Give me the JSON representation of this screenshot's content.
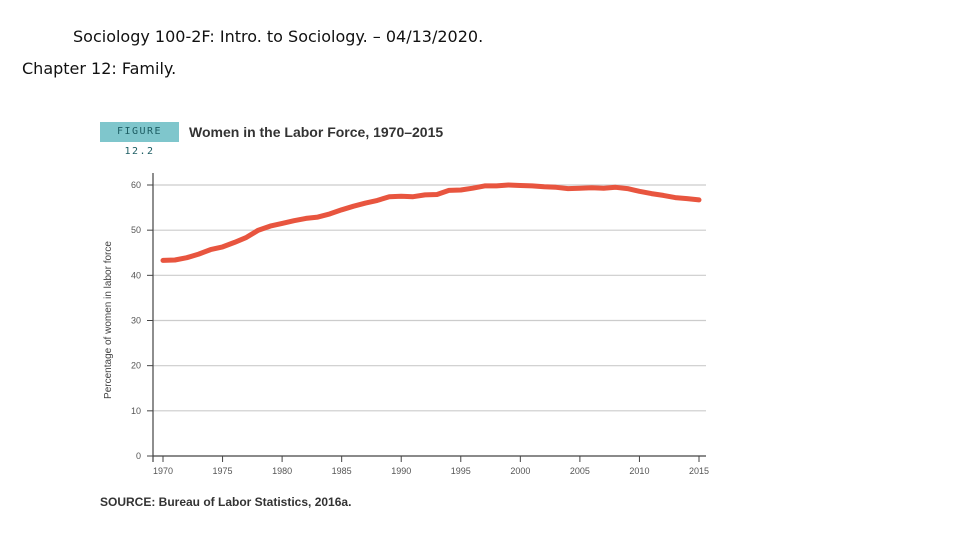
{
  "slide": {
    "title": "Sociology 100-2F: Intro. to Sociology. – 04/13/2020.",
    "subtitle": "Chapter 12: Family."
  },
  "figure": {
    "tag": "FIGURE 12.2",
    "title": "Women in the Labor Force, 1970–2015",
    "source": "SOURCE: Bureau of Labor Statistics, 2016a."
  },
  "colors": {
    "line": "#e8553f",
    "tag_background": "#7fc6cc",
    "grid": "#cccccc",
    "axis": "#444444"
  },
  "chart_data": {
    "type": "line",
    "title": "Women in the Labor Force, 1970–2015",
    "xlabel": "",
    "ylabel": "Percentage of women in labor force",
    "xlim": [
      1970,
      2015
    ],
    "ylim": [
      0,
      60
    ],
    "x_ticks": [
      1970,
      1975,
      1980,
      1985,
      1990,
      1995,
      2000,
      2005,
      2010,
      2015
    ],
    "y_ticks": [
      0,
      10,
      20,
      30,
      40,
      50,
      60
    ],
    "grid": true,
    "series": [
      {
        "x": [
          1970,
          1971,
          1972,
          1973,
          1974,
          1975,
          1976,
          1977,
          1978,
          1979,
          1980,
          1981,
          1982,
          1983,
          1984,
          1985,
          1986,
          1987,
          1988,
          1989,
          1990,
          1991,
          1992,
          1993,
          1994,
          1995,
          1996,
          1997,
          1998,
          1999,
          2000,
          2001,
          2002,
          2003,
          2004,
          2005,
          2006,
          2007,
          2008,
          2009,
          2010,
          2011,
          2012,
          2013,
          2014,
          2015
        ],
        "values": [
          43.3,
          43.4,
          43.9,
          44.7,
          45.7,
          46.3,
          47.3,
          48.4,
          50.0,
          50.9,
          51.5,
          52.1,
          52.6,
          52.9,
          53.6,
          54.5,
          55.3,
          56.0,
          56.6,
          57.4,
          57.5,
          57.4,
          57.8,
          57.9,
          58.8,
          58.9,
          59.3,
          59.8,
          59.8,
          60.0,
          59.9,
          59.8,
          59.6,
          59.5,
          59.2,
          59.3,
          59.4,
          59.3,
          59.5,
          59.2,
          58.6,
          58.1,
          57.7,
          57.2,
          57.0,
          56.7
        ]
      }
    ]
  }
}
